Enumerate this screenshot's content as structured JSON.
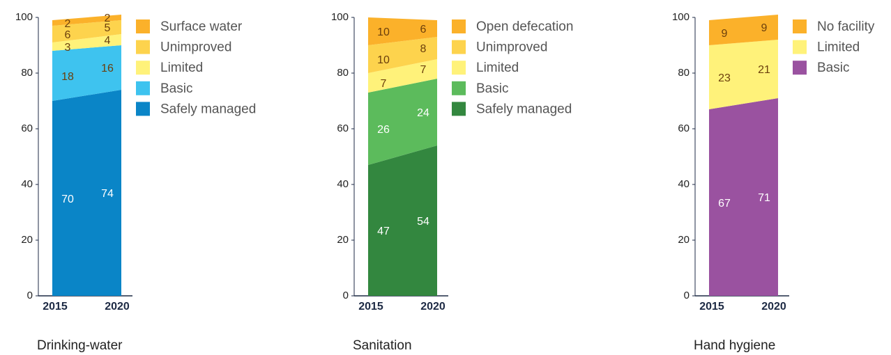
{
  "chart_data": [
    {
      "type": "stacked_area",
      "title": "Drinking-water",
      "categories": [
        "2015",
        "2020"
      ],
      "series": [
        {
          "name": "Safely managed",
          "color": "#0a85c7",
          "values": [
            70,
            74
          ]
        },
        {
          "name": "Basic",
          "color": "#3ec3ef",
          "values": [
            18,
            16
          ]
        },
        {
          "name": "Limited",
          "color": "#fff27a",
          "values": [
            3,
            4
          ]
        },
        {
          "name": "Unimproved",
          "color": "#fdd34d",
          "values": [
            6,
            5
          ]
        },
        {
          "name": "Surface water",
          "color": "#fbb12a",
          "values": [
            2,
            2
          ]
        }
      ],
      "ylim": [
        0,
        100
      ],
      "yticks": [
        0,
        20,
        40,
        60,
        80,
        100
      ],
      "legend": "right"
    },
    {
      "type": "stacked_area",
      "title": "Sanitation",
      "categories": [
        "2015",
        "2020"
      ],
      "series": [
        {
          "name": "Safely managed",
          "color": "#33873f",
          "values": [
            47,
            54
          ]
        },
        {
          "name": "Basic",
          "color": "#5cbb5c",
          "values": [
            26,
            24
          ]
        },
        {
          "name": "Limited",
          "color": "#fff27a",
          "values": [
            7,
            7
          ]
        },
        {
          "name": "Unimproved",
          "color": "#fdd34d",
          "values": [
            10,
            8
          ]
        },
        {
          "name": "Open defecation",
          "color": "#fbb12a",
          "values": [
            10,
            6
          ]
        }
      ],
      "ylim": [
        0,
        100
      ],
      "yticks": [
        0,
        20,
        40,
        60,
        80,
        100
      ],
      "legend": "right"
    },
    {
      "type": "stacked_area",
      "title": "Hand hygiene",
      "categories": [
        "2015",
        "2020"
      ],
      "series": [
        {
          "name": "Basic",
          "color": "#9a52a0",
          "values": [
            67,
            71
          ]
        },
        {
          "name": "Limited",
          "color": "#fff27a",
          "values": [
            23,
            21
          ]
        },
        {
          "name": "No facility",
          "color": "#fbb12a",
          "values": [
            9,
            9
          ]
        }
      ],
      "ylim": [
        0,
        100
      ],
      "yticks": [
        0,
        20,
        40,
        60,
        80,
        100
      ],
      "legend": "right"
    }
  ]
}
